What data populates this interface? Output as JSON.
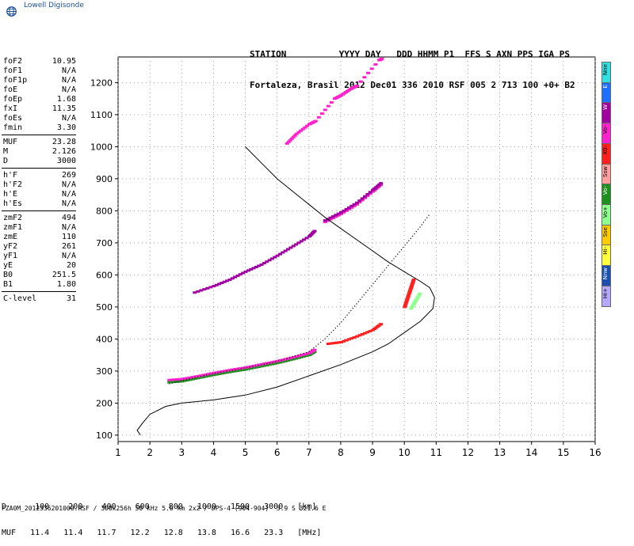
{
  "app": {
    "logo_text": "Lowell Digisonde"
  },
  "header": {
    "line1": "STATION          YYYY DAY   DDD HHMM P1  FFS S AXN PPS IGA PS",
    "line2": "Fortaleza, Brasil 2012 Dec01 336 2010 RSF 005 2 713 100 +0+ B2"
  },
  "params_group1": [
    {
      "key": "foF2",
      "value": "10.95"
    },
    {
      "key": "foF1",
      "value": "N/A"
    },
    {
      "key": "foF1p",
      "value": "N/A"
    },
    {
      "key": "foE",
      "value": "N/A"
    },
    {
      "key": "foEp",
      "value": "1.68"
    },
    {
      "key": "fxI",
      "value": "11.35"
    },
    {
      "key": "foEs",
      "value": "N/A"
    },
    {
      "key": "fmin",
      "value": "3.30"
    }
  ],
  "params_group2": [
    {
      "key": "MUF",
      "value": "23.28"
    },
    {
      "key": "M",
      "value": "2.126"
    },
    {
      "key": "D",
      "value": "3000"
    }
  ],
  "params_group3": [
    {
      "key": "h'F",
      "value": "269"
    },
    {
      "key": "h'F2",
      "value": "N/A"
    },
    {
      "key": "h'E",
      "value": "N/A"
    },
    {
      "key": "h'Es",
      "value": "N/A"
    }
  ],
  "params_group4": [
    {
      "key": "zmF2",
      "value": "494"
    },
    {
      "key": "zmF1",
      "value": "N/A"
    },
    {
      "key": "zmE",
      "value": "110"
    },
    {
      "key": "yF2",
      "value": "261"
    },
    {
      "key": "yF1",
      "value": "N/A"
    },
    {
      "key": "yE",
      "value": "20"
    },
    {
      "key": "B0",
      "value": "251.5"
    },
    {
      "key": "B1",
      "value": "1.80"
    }
  ],
  "params_group5": [
    {
      "key": "C-level",
      "value": "31"
    }
  ],
  "legend": [
    {
      "label": "Nne",
      "color": "#33e0e0"
    },
    {
      "label": "E",
      "color": "#1e6fff"
    },
    {
      "label": "W",
      "color": "#a000a0"
    },
    {
      "label": "Vo-",
      "color": "#ff22cc"
    },
    {
      "label": "X0-",
      "color": "#ff2020"
    },
    {
      "label": "Ssw",
      "color": "#ff9f9f"
    },
    {
      "label": "Vo-",
      "color": "#1f8f1f"
    },
    {
      "label": "Vo+",
      "color": "#8fff8f"
    },
    {
      "label": "Sse",
      "color": "#ffcc00"
    },
    {
      "label": "Hi-",
      "color": "#ffff40"
    },
    {
      "label": "Nnw",
      "color": "#1a4fb0"
    },
    {
      "label": "Hi+",
      "color": "#b7a8ff"
    }
  ],
  "bottom": {
    "line1": "D      100    200    400    600    800   1000   1500   3000   [km]",
    "line2": "MUF   11.4   11.4   11.7   12.2   12.8   13.8   16.6   23.3   [MHz]",
    "line3": "FZA0M_2012336201000.RSF / 300x256h 50 kHz 5.0 km 2x2 / DPS-4 (904-904)  3.9 S 321.6 E"
  },
  "chart_data": {
    "type": "scatter",
    "title": "",
    "xlabel": "",
    "ylabel": "",
    "xlim": [
      1,
      16
    ],
    "ylim": [
      80,
      1280
    ],
    "x_ticks": [
      1,
      2,
      3,
      4,
      5,
      6,
      7,
      8,
      9,
      10,
      11,
      12,
      13,
      14,
      15,
      16
    ],
    "y_ticks": [
      100,
      200,
      300,
      400,
      500,
      600,
      700,
      800,
      900,
      1000,
      1100,
      1200
    ],
    "grid": true,
    "series": [
      {
        "kind": "echo-trace",
        "color": "#1f8f1f",
        "x": [
          2.6,
          3.0,
          3.5,
          4.0,
          4.5,
          5.0,
          5.5,
          6.0,
          6.5,
          7.0,
          7.2
        ],
        "y": [
          265,
          268,
          278,
          288,
          297,
          305,
          315,
          325,
          337,
          350,
          362
        ]
      },
      {
        "kind": "echo-trace",
        "color": "#ff22cc",
        "x": [
          2.6,
          3.0,
          3.5,
          4.0,
          4.5,
          5.0,
          5.5,
          6.0,
          6.5,
          7.0,
          7.2
        ],
        "y": [
          272,
          275,
          284,
          294,
          303,
          311,
          321,
          331,
          343,
          356,
          368
        ]
      },
      {
        "kind": "echo-trace",
        "color": "#ff2020",
        "x": [
          7.6,
          8.0,
          8.5,
          9.0,
          9.3
        ],
        "y": [
          385,
          390,
          408,
          428,
          450
        ]
      },
      {
        "kind": "echo-trace",
        "color": "#a000a0",
        "x": [
          3.4,
          4.0,
          4.5,
          5.0,
          5.5,
          6.0,
          6.5,
          7.0,
          7.2
        ],
        "y": [
          545,
          565,
          585,
          610,
          632,
          660,
          690,
          720,
          740
        ]
      },
      {
        "kind": "echo-trace",
        "color": "#ff22cc",
        "x": [
          7.5,
          8.0,
          8.5,
          9.0,
          9.3
        ],
        "y": [
          765,
          790,
          820,
          860,
          885
        ]
      },
      {
        "kind": "echo-trace",
        "color": "#a000a0",
        "x": [
          7.5,
          8.0,
          8.5,
          9.0,
          9.3
        ],
        "y": [
          770,
          795,
          825,
          865,
          890
        ]
      },
      {
        "kind": "echo-trace",
        "color": "#ff2020",
        "x": [
          10.0,
          10.1,
          10.2,
          10.3
        ],
        "y": [
          500,
          530,
          560,
          590
        ]
      },
      {
        "kind": "echo-trace",
        "color": "#8fff8f",
        "x": [
          10.2,
          10.35,
          10.5
        ],
        "y": [
          495,
          520,
          545
        ]
      },
      {
        "kind": "echo-trace",
        "color": "#ff22cc",
        "x": [
          6.3,
          6.6,
          7.0,
          7.2,
          7.8,
          8.0,
          8.3,
          8.5,
          9.2,
          9.3
        ],
        "y": [
          1010,
          1040,
          1070,
          1080,
          1150,
          1160,
          1180,
          1190,
          1270,
          1275
        ]
      }
    ],
    "profile": {
      "kind": "electron-density-profile",
      "color": "#000000",
      "x": [
        1.7,
        1.6,
        1.75,
        2.0,
        2.5,
        3.0,
        3.5,
        4.0,
        5.0,
        6.0,
        7.0,
        8.0,
        9.0,
        9.5,
        10.0,
        10.5,
        10.9,
        10.95,
        10.8,
        10.5,
        10.0,
        9.5,
        9.0,
        8.5,
        8.0,
        7.5,
        7.0,
        6.5,
        6.0,
        5.5,
        5.0
      ],
      "y": [
        100,
        115,
        135,
        165,
        190,
        200,
        205,
        210,
        225,
        250,
        285,
        320,
        360,
        385,
        420,
        455,
        495,
        530,
        560,
        580,
        610,
        640,
        675,
        710,
        745,
        780,
        820,
        860,
        900,
        950,
        1000
      ]
    },
    "trace": {
      "kind": "dotted-trace",
      "color": "#000000",
      "x": [
        2.6,
        3.0,
        3.5,
        4.0,
        5.0,
        6.0,
        7.0,
        7.5,
        8.0,
        8.5,
        9.0,
        9.5,
        10.0,
        10.5,
        10.8
      ],
      "y": [
        260,
        270,
        282,
        292,
        310,
        330,
        360,
        400,
        450,
        510,
        570,
        630,
        690,
        750,
        790
      ]
    }
  }
}
